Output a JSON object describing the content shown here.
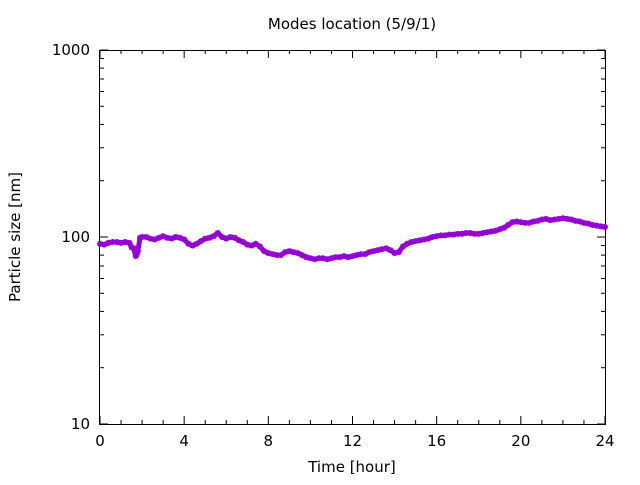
{
  "chart_data": {
    "type": "scatter",
    "title": "Modes location (5/9/1)",
    "xlabel": "Time [hour]",
    "ylabel": "Particle size [nm]",
    "xlim": [
      0,
      24
    ],
    "ylim": [
      10,
      1000
    ],
    "yscale": "log",
    "x_ticks": [
      0,
      4,
      8,
      12,
      16,
      20,
      24
    ],
    "x_tick_labels": [
      "0",
      "4",
      "8",
      "12",
      "16",
      "20",
      "24"
    ],
    "y_ticks": [
      10,
      100,
      1000
    ],
    "y_tick_labels": [
      "10",
      "100",
      "1000"
    ],
    "grid": false,
    "legend": "none",
    "marker_color": "#9400d3",
    "series": [
      {
        "x": [
          0.0,
          0.2,
          0.4,
          0.6,
          0.8,
          1.0,
          1.2,
          1.4,
          1.5,
          1.6,
          1.7,
          1.75,
          1.8,
          1.9,
          2.0,
          2.2,
          2.4,
          2.6,
          2.8,
          3.0,
          3.2,
          3.4,
          3.6,
          3.8,
          4.0,
          4.2,
          4.4,
          4.6,
          4.8,
          5.0,
          5.2,
          5.4,
          5.6,
          5.8,
          6.0,
          6.2,
          6.4,
          6.6,
          6.8,
          7.0,
          7.2,
          7.4,
          7.6,
          7.8,
          8.0,
          8.2,
          8.4,
          8.6,
          8.8,
          9.0,
          9.2,
          9.4,
          9.6,
          9.8,
          10.0,
          10.2,
          10.4,
          10.6,
          10.8,
          11.0,
          11.2,
          11.4,
          11.6,
          11.8,
          12.0,
          12.2,
          12.4,
          12.6,
          12.8,
          13.0,
          13.2,
          13.4,
          13.6,
          13.8,
          14.0,
          14.2,
          14.4,
          14.6,
          14.8,
          15.0,
          15.2,
          15.4,
          15.6,
          15.8,
          16.0,
          16.2,
          16.4,
          16.6,
          16.8,
          17.0,
          17.2,
          17.4,
          17.6,
          17.8,
          18.0,
          18.2,
          18.4,
          18.6,
          18.8,
          19.0,
          19.2,
          19.4,
          19.6,
          19.8,
          20.0,
          20.2,
          20.4,
          20.6,
          20.8,
          21.0,
          21.2,
          21.4,
          21.6,
          21.8,
          22.0,
          22.2,
          22.4,
          22.6,
          22.8,
          23.0,
          23.2,
          23.4,
          23.6,
          23.8,
          24.0
        ],
        "y": [
          92,
          91,
          93,
          94,
          94,
          93,
          94,
          93,
          88,
          87,
          79,
          81,
          84,
          99,
          100,
          100,
          98,
          97,
          99,
          101,
          99,
          98,
          100,
          99,
          97,
          92,
          90,
          92,
          95,
          98,
          99,
          101,
          105,
          100,
          98,
          100,
          99,
          96,
          94,
          91,
          90,
          92,
          89,
          84,
          82,
          81,
          80,
          80,
          83,
          84,
          83,
          82,
          80,
          78,
          77,
          76,
          77,
          77,
          76,
          77,
          78,
          78,
          79,
          78,
          79,
          80,
          81,
          81,
          83,
          84,
          85,
          86,
          87,
          85,
          82,
          83,
          89,
          92,
          94,
          95,
          96,
          97,
          98,
          100,
          101,
          102,
          102,
          103,
          103,
          104,
          104,
          105,
          105,
          104,
          104,
          105,
          106,
          107,
          108,
          110,
          112,
          116,
          120,
          121,
          120,
          119,
          119,
          121,
          122,
          124,
          125,
          123,
          124,
          125,
          126,
          125,
          124,
          122,
          121,
          119,
          118,
          116,
          115,
          114,
          113
        ]
      }
    ]
  }
}
